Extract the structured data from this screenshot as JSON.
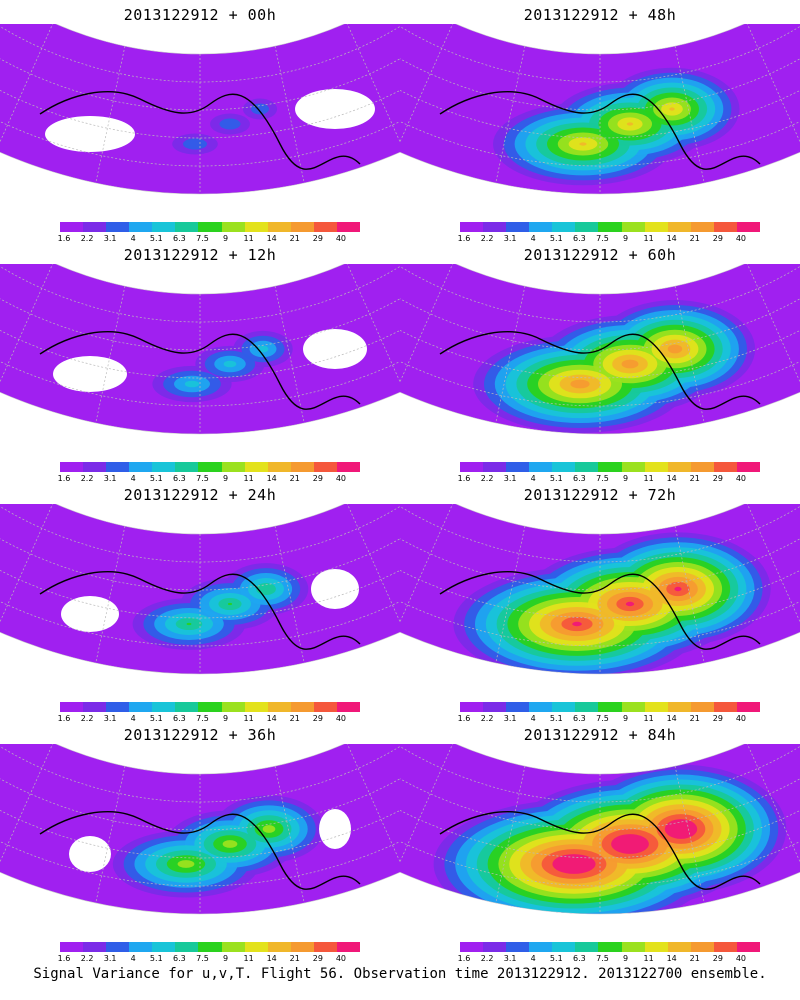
{
  "panels": [
    {
      "title": "2013122912 + 00h",
      "spread": 0
    },
    {
      "title": "2013122912 + 48h",
      "spread": 4
    },
    {
      "title": "2013122912 + 12h",
      "spread": 1
    },
    {
      "title": "2013122912 + 60h",
      "spread": 5
    },
    {
      "title": "2013122912 + 24h",
      "spread": 2
    },
    {
      "title": "2013122912 + 72h",
      "spread": 6
    },
    {
      "title": "2013122912 + 36h",
      "spread": 3
    },
    {
      "title": "2013122912 + 84h",
      "spread": 7
    }
  ],
  "colorbar": {
    "labels": [
      "1.6",
      "2.2",
      "3.1",
      "4",
      "5.1",
      "6.3",
      "7.5",
      "9",
      "11",
      "14",
      "21",
      "29",
      "40"
    ],
    "colors": [
      "#a020f0",
      "#7b2be8",
      "#2f5ee8",
      "#1fa7f0",
      "#19c4d8",
      "#17c99a",
      "#2ad21e",
      "#9be11f",
      "#e3e21c",
      "#f0b72a",
      "#f59a30",
      "#f5573c",
      "#f01878"
    ]
  },
  "caption": "Signal Variance for u,v,T. Flight 56. Observation time 2013122912. 2013122700 ensemble."
}
